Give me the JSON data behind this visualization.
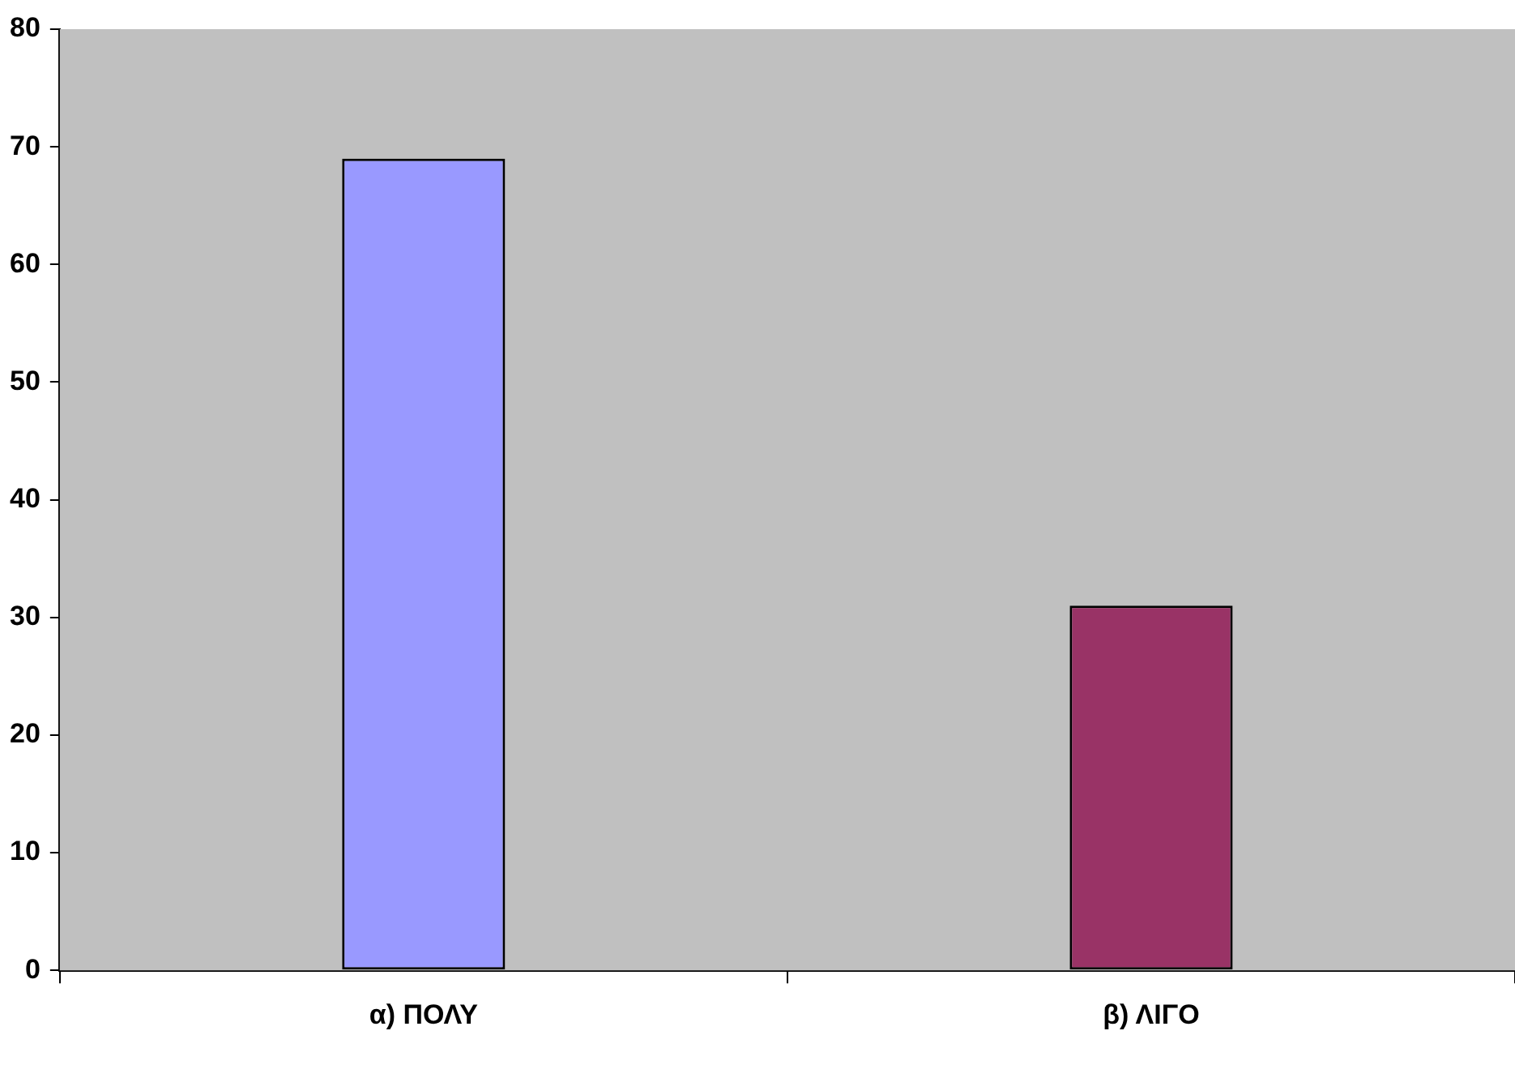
{
  "chart_data": {
    "type": "bar",
    "categories": [
      "α) ΠΟΛΥ",
      "β) ΛΙΓΟ"
    ],
    "values": [
      69,
      31
    ],
    "colors": [
      "#9999ff",
      "#993366"
    ],
    "ylim": [
      0,
      80
    ],
    "yticks": [
      0,
      10,
      20,
      30,
      40,
      50,
      60,
      70,
      80
    ],
    "grid": false,
    "legend": false
  }
}
